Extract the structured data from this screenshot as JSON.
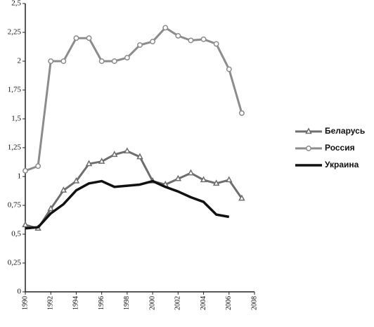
{
  "chart_data": {
    "type": "line",
    "x": [
      1990,
      1991,
      1992,
      1993,
      1994,
      1995,
      1996,
      1997,
      1998,
      1999,
      2000,
      2001,
      2002,
      2003,
      2004,
      2005,
      2006,
      2007
    ],
    "series": [
      {
        "name": "Беларусь",
        "color": "#6e6e6e",
        "marker": "triangle",
        "values": [
          0.58,
          0.55,
          0.72,
          0.88,
          0.96,
          1.11,
          1.13,
          1.19,
          1.22,
          1.17,
          0.96,
          0.93,
          0.98,
          1.03,
          0.97,
          0.94,
          0.97,
          0.81
        ]
      },
      {
        "name": "Россия",
        "color": "#8c8c8c",
        "marker": "circle",
        "values": [
          1.05,
          1.09,
          2.0,
          2.0,
          2.2,
          2.2,
          2.0,
          2.0,
          2.03,
          2.14,
          2.17,
          2.29,
          2.22,
          2.18,
          2.19,
          2.15,
          1.93,
          1.55
        ]
      },
      {
        "name": "Украина",
        "color": "#111111",
        "marker": "none",
        "values": [
          0.55,
          0.56,
          0.68,
          0.76,
          0.88,
          0.94,
          0.96,
          0.91,
          0.92,
          0.93,
          0.96,
          0.91,
          0.87,
          0.82,
          0.78,
          0.67,
          0.65,
          null
        ]
      }
    ],
    "xlim": [
      1990,
      2008
    ],
    "xticks": [
      1990,
      1992,
      1994,
      1996,
      1998,
      2000,
      2002,
      2004,
      2006,
      2008
    ],
    "ylim": [
      0,
      2.5
    ],
    "yticks": [
      0,
      {
        "value": 0.25,
        "label": "0,25"
      },
      {
        "value": 0.5,
        "label": "0,5"
      },
      {
        "value": 0.75,
        "label": "0,75"
      },
      1,
      {
        "value": 1.25,
        "label": "1,25"
      },
      {
        "value": 1.5,
        "label": "1,5"
      },
      {
        "value": 1.75,
        "label": "1,75"
      },
      2,
      {
        "value": 2.25,
        "label": "2,25"
      },
      {
        "value": 2.5,
        "label": "2,5"
      }
    ],
    "legend": "right"
  }
}
